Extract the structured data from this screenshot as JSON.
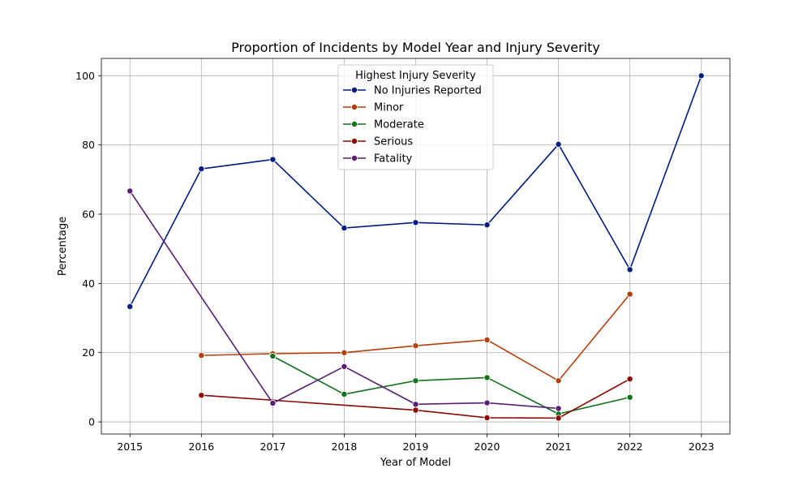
{
  "chart_data": {
    "type": "line",
    "title": "Proportion of Incidents by Model Year and Injury Severity",
    "xlabel": "Year of Model",
    "ylabel": "Percentage",
    "xlim": [
      2014.6,
      2023.4
    ],
    "ylim": [
      -3.5,
      105
    ],
    "xticks": [
      2015,
      2016,
      2017,
      2018,
      2019,
      2020,
      2021,
      2022,
      2023
    ],
    "yticks": [
      0,
      20,
      40,
      60,
      80,
      100
    ],
    "grid": true,
    "legend": {
      "title": "Highest Injury Severity",
      "placement": "top-center"
    },
    "series": [
      {
        "name": "No Injuries Reported",
        "color": "#001c7f",
        "x": [
          2015,
          2016,
          2017,
          2018,
          2019,
          2020,
          2021,
          2022,
          2023
        ],
        "y": [
          33.3,
          73.1,
          75.8,
          56.0,
          57.6,
          56.9,
          80.2,
          44.0,
          100.0
        ]
      },
      {
        "name": "Minor",
        "color": "#b1400d",
        "x": [
          2016,
          2017,
          2018,
          2019,
          2020,
          2021,
          2022
        ],
        "y": [
          19.2,
          19.7,
          20.0,
          22.0,
          23.7,
          11.9,
          36.9
        ]
      },
      {
        "name": "Moderate",
        "color": "#12711c",
        "x": [
          2017,
          2018,
          2019,
          2020,
          2021,
          2022
        ],
        "y": [
          19.0,
          8.0,
          11.9,
          12.8,
          2.3,
          7.1
        ]
      },
      {
        "name": "Serious",
        "color": "#8c0800",
        "x": [
          2016,
          2019,
          2020,
          2021,
          2022
        ],
        "y": [
          7.7,
          3.4,
          1.2,
          1.1,
          12.4
        ]
      },
      {
        "name": "Fatality",
        "color": "#591e71",
        "x": [
          2015,
          2017,
          2018,
          2019,
          2020,
          2021
        ],
        "y": [
          66.7,
          5.4,
          16.0,
          5.1,
          5.5,
          3.9
        ]
      }
    ]
  }
}
